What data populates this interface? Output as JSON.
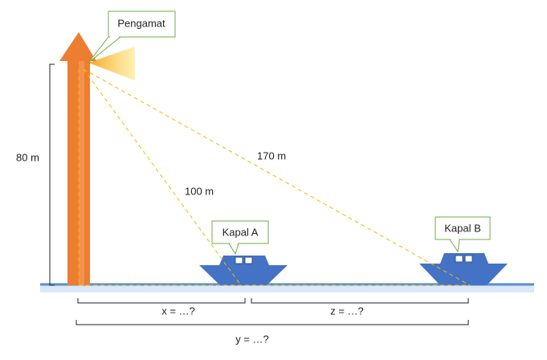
{
  "observer": {
    "label": "Pengamat"
  },
  "height": {
    "label": "80 m"
  },
  "distances": {
    "to_ship_a": "100 m",
    "to_ship_b": "170 m"
  },
  "ships": [
    {
      "label": "Kapal A"
    },
    {
      "label": "Kapal B"
    }
  ],
  "unknowns": {
    "x": "x = …?",
    "z": "z = …?",
    "y": "y = …?"
  }
}
